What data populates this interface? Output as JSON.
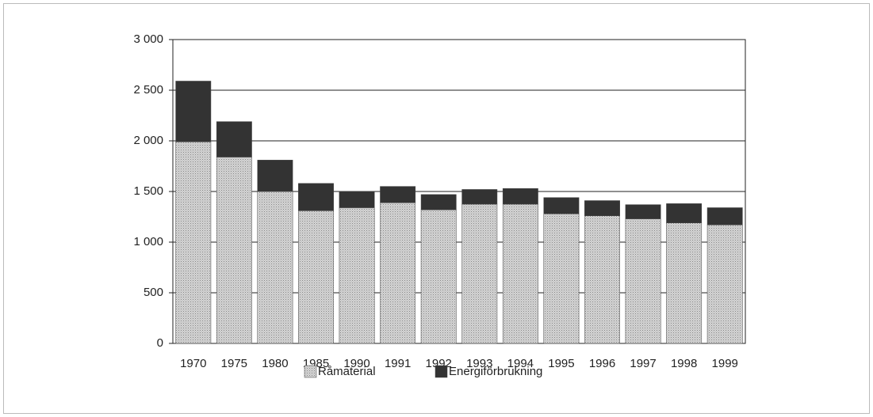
{
  "chart_data": {
    "type": "stacked_bar",
    "categories": [
      "1970",
      "1975",
      "1980",
      "1985",
      "1990",
      "1991",
      "1992",
      "1993",
      "1994",
      "1995",
      "1996",
      "1997",
      "1998",
      "1999"
    ],
    "series": [
      {
        "name": "Råmaterial",
        "color": "#d4d4d4",
        "values": [
          1990,
          1840,
          1500,
          1310,
          1340,
          1390,
          1320,
          1375,
          1375,
          1280,
          1260,
          1230,
          1190,
          1170
        ]
      },
      {
        "name": "Energiförbrukning",
        "color": "#333333",
        "values": [
          600,
          350,
          310,
          270,
          160,
          160,
          150,
          145,
          155,
          160,
          150,
          140,
          190,
          170
        ]
      }
    ],
    "ylim": [
      0,
      3000
    ],
    "yticks": [
      0,
      500,
      {
        "value": 1000,
        "label": "1 000"
      },
      {
        "value": 1500,
        "label": "1 500"
      },
      {
        "value": 2000,
        "label": "2 000"
      },
      {
        "value": 2500,
        "label": "2 500"
      },
      {
        "value": 3000,
        "label": "3 000"
      }
    ],
    "grid": true
  }
}
